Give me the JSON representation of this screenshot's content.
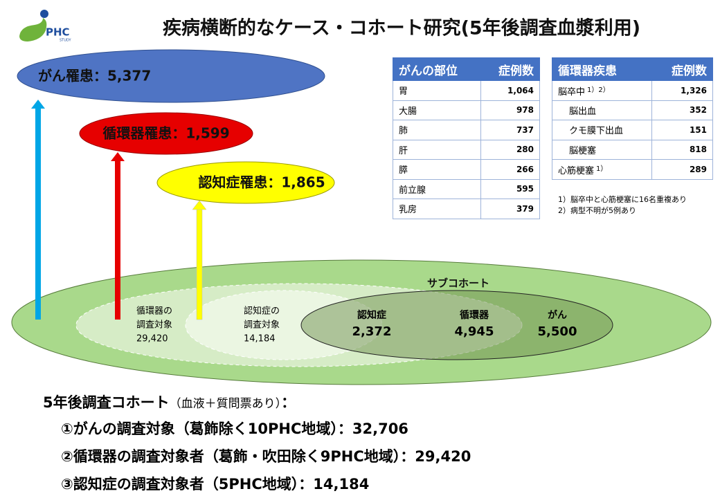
{
  "logo": {
    "text": "PHC",
    "sub": "STUDY"
  },
  "title": "疾病横断的なケース・コホート研究(5年後調査血漿利用)",
  "cases": {
    "cancer": "がん罹患：5,377",
    "cvd": "循環器罹患：1,599",
    "dementia": "認知症罹患：1,865"
  },
  "cancer_table": {
    "header": [
      "がんの部位",
      "症例数"
    ],
    "rows": [
      [
        "胃",
        "1,064"
      ],
      [
        "大腸",
        "978"
      ],
      [
        "肺",
        "737"
      ],
      [
        "肝",
        "280"
      ],
      [
        "膵",
        "266"
      ],
      [
        "前立腺",
        "595"
      ],
      [
        "乳房",
        "379"
      ]
    ]
  },
  "cvd_table": {
    "header": [
      "循環器疾患",
      "症例数"
    ],
    "rows": [
      {
        "name": "脳卒中",
        "note": "1）2）",
        "count": "1,326",
        "subtypes": [
          {
            "name": "脳出血",
            "count": "352"
          },
          {
            "name": "クモ膜下出血",
            "count": "151"
          },
          {
            "name": "脳梗塞",
            "count": "818"
          }
        ]
      },
      {
        "name": "心筋梗塞",
        "note": "1）",
        "count": "289"
      }
    ],
    "footnotes": [
      "1）脳卒中と心筋梗塞に16名重複あり",
      "2）病型不明が5例あり"
    ]
  },
  "venn": {
    "subcohort": "サブコホート",
    "cvd_target": [
      "循環器の",
      "調査対象",
      "29,420"
    ],
    "dementia_target": [
      "認知症の",
      "調査対象",
      "14,184"
    ],
    "subcohort_parts": [
      {
        "label": "認知症",
        "value": "2,372"
      },
      {
        "label": "循環器",
        "value": "4,945"
      },
      {
        "label": "がん",
        "value": "5,500"
      }
    ]
  },
  "cohort": {
    "heading": "5年後調査コホート",
    "heading_note": "（血液＋質問票あり）",
    "heading_end": "：",
    "items": [
      "①がんの調査対象（葛飾除く10PHC地域）：32,706",
      "②循環器の調査対象者（葛飾・吹田除く9PHC地域）：29,420",
      "③認知症の調査対象者（5PHC地域）：14,184"
    ]
  }
}
